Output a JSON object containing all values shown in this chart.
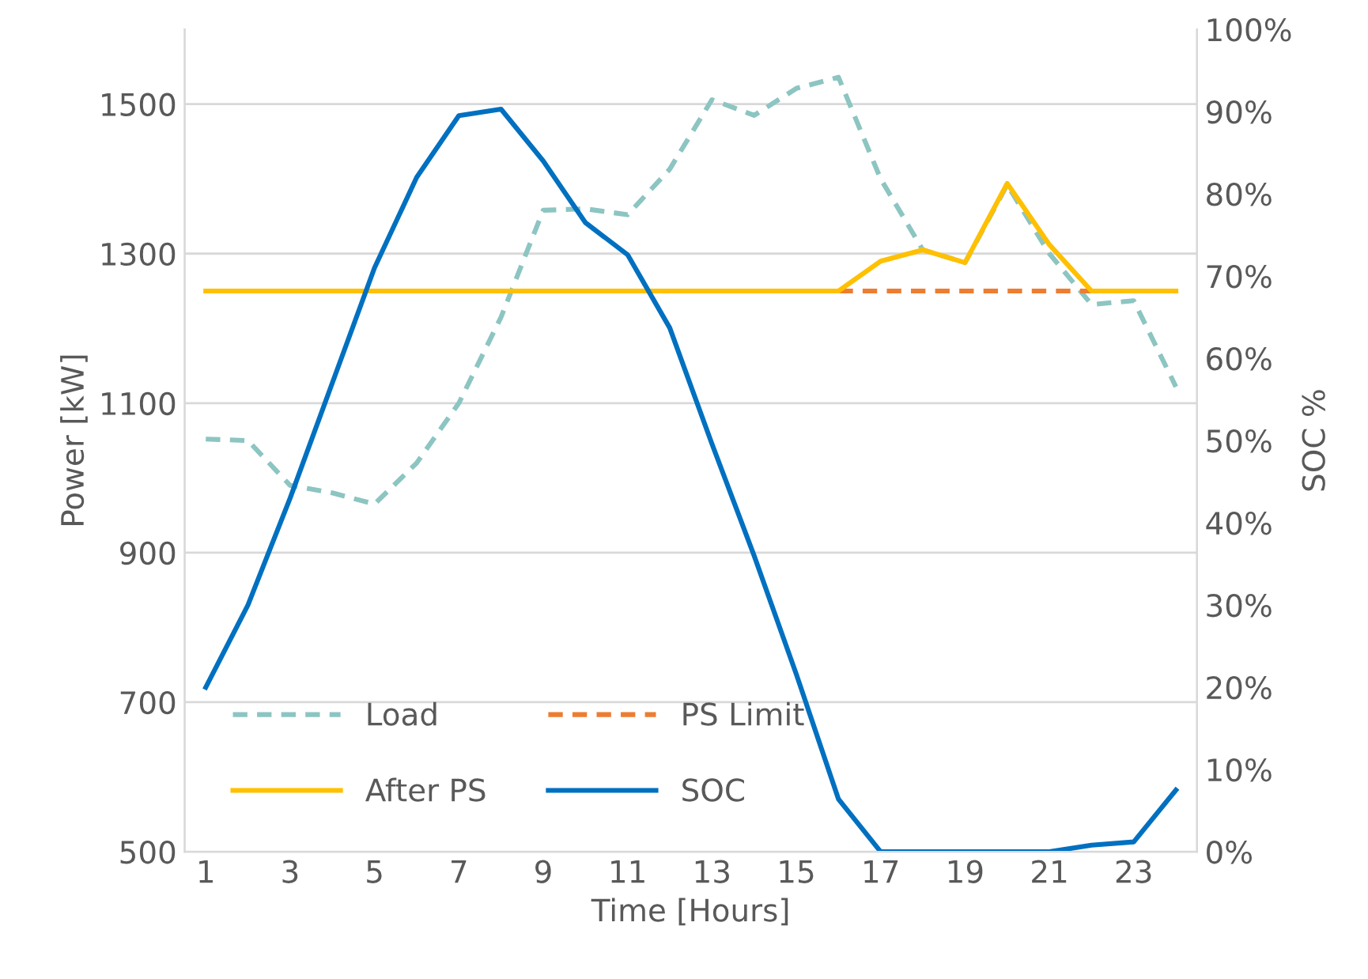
{
  "chart_data": {
    "type": "line",
    "xlabel": "Time [Hours]",
    "ylabel": "Power [kW]",
    "y2label": "SOC %",
    "categories": [
      "1",
      null,
      "3",
      null,
      "5",
      null,
      "7",
      null,
      "9",
      null,
      "11",
      null,
      "13",
      null,
      "15",
      null,
      "17",
      null,
      "19",
      null,
      "21",
      null,
      "23",
      null
    ],
    "ylim": [
      500,
      1600
    ],
    "yticks": [
      500,
      700,
      900,
      1100,
      1300,
      1500
    ],
    "y2lim": [
      0,
      100
    ],
    "y2ticks": [
      {
        "value": 0,
        "label": "0%"
      },
      {
        "value": 10,
        "label": "10%"
      },
      {
        "value": 20,
        "label": "20%"
      },
      {
        "value": 30,
        "label": "30%"
      },
      {
        "value": 40,
        "label": "40%"
      },
      {
        "value": 50,
        "label": "50%"
      },
      {
        "value": 60,
        "label": "60%"
      },
      {
        "value": 70,
        "label": "70%"
      },
      {
        "value": 80,
        "label": "80%"
      },
      {
        "value": 90,
        "label": "90%"
      },
      {
        "value": 100,
        "label": "100%"
      }
    ],
    "grid": "y",
    "legend": "bottom",
    "marker": "none",
    "series": [
      {
        "name": "Load",
        "color": "#8cc5c1",
        "line_style": "dashed",
        "values": [
          1052,
          1050,
          990,
          980,
          965,
          1020,
          1100,
          1215,
          1358,
          1360,
          1352,
          1413,
          1506,
          1485,
          1521,
          1536,
          1400,
          1305,
          1288,
          1392,
          1300,
          1232,
          1237,
          1122
        ]
      },
      {
        "name": "PS Limit",
        "color": "#ed7d31",
        "line_style": "dashed",
        "values": [
          null,
          null,
          null,
          null,
          null,
          null,
          null,
          null,
          null,
          null,
          null,
          null,
          null,
          null,
          null,
          1250,
          1250,
          1250,
          1250,
          1250,
          1250,
          1250,
          null,
          null
        ]
      },
      {
        "name": "After PS",
        "color": "#ffc000",
        "line_style": "solid",
        "values": [
          1250,
          1250,
          1250,
          1250,
          1250,
          1250,
          1250,
          1250,
          1250,
          1250,
          1250,
          1250,
          1250,
          1250,
          1250,
          1250,
          1290,
          1305,
          1288,
          1394,
          1312,
          1250,
          1250,
          1250
        ]
      },
      {
        "name": "SOC",
        "color": "#0070c0",
        "line_style": "solid",
        "axis": "y2",
        "values": [
          20,
          30,
          43,
          57,
          71,
          82,
          89.5,
          90.3,
          84,
          76.5,
          72.6,
          63.7,
          49.6,
          36,
          21.6,
          6.4,
          0,
          0,
          0,
          0,
          0,
          0.8,
          1.2,
          7.5
        ]
      }
    ]
  }
}
